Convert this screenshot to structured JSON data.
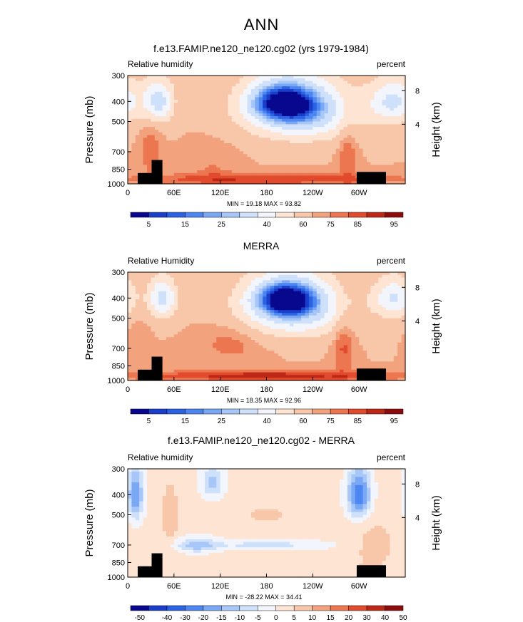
{
  "page_title": "ANN",
  "colors": {
    "levels": [
      "#08088e",
      "#1a3ec9",
      "#2a62e3",
      "#4d86f0",
      "#7ba8f5",
      "#a7c7f8",
      "#cfe0fa",
      "#f2f6fc",
      "#fde4d3",
      "#f8c6a9",
      "#f3a27e",
      "#ec7650",
      "#e14a2c",
      "#bd2715",
      "#8c0c0c"
    ],
    "terrain": "#000000"
  },
  "chart_data": [
    {
      "type": "heatmap",
      "title": "f.e13.FAMIP.ne120_ne120.cg02 (yrs 1979-1984)",
      "left_label": "Relative humidity",
      "right_label": "percent",
      "ylabel": "Pressure (mb)",
      "ylabel_right": "Height (km)",
      "xticks": [
        "0",
        "60E",
        "120E",
        "180",
        "120W",
        "60W"
      ],
      "yticks": [
        "300",
        "400",
        "500",
        "700",
        "850",
        "1000"
      ],
      "yticks_right": [
        "8",
        "4"
      ],
      "stats": "MIN =   19.18   MAX =   93.82",
      "colorbar_labels": [
        "5",
        "15",
        "25",
        "40",
        "60",
        "75",
        "85",
        "95"
      ],
      "x_range_deg": [
        0,
        360
      ],
      "y_range_mb": [
        300,
        1000
      ],
      "features": [
        {
          "lon": 180,
          "p": 850,
          "value": 70,
          "spread_lon": 200,
          "spread_p": 300
        },
        {
          "lon": 200,
          "p": 400,
          "value": 22,
          "spread_lon": 45,
          "spread_p": 90
        },
        {
          "lon": 225,
          "p": 450,
          "value": 28,
          "spread_lon": 70,
          "spread_p": 150
        },
        {
          "lon": 40,
          "p": 400,
          "value": 35,
          "spread_lon": 20,
          "spread_p": 100
        },
        {
          "lon": 345,
          "p": 400,
          "value": 38,
          "spread_lon": 30,
          "spread_p": 100
        },
        {
          "lon": 180,
          "p": 950,
          "value": 85,
          "spread_lon": 180,
          "spread_p": 60
        },
        {
          "lon": 285,
          "p": 700,
          "value": 80,
          "spread_lon": 12,
          "spread_p": 250
        },
        {
          "lon": 30,
          "p": 700,
          "value": 80,
          "spread_lon": 12,
          "spread_p": 200
        },
        {
          "lon": 110,
          "p": 800,
          "value": 75,
          "spread_lon": 30,
          "spread_p": 180
        }
      ]
    },
    {
      "type": "heatmap",
      "title": "MERRA",
      "left_label": "Relative Humidity",
      "right_label": "percent",
      "ylabel": "Pressure (mb)",
      "ylabel_right": "Height (km)",
      "xticks": [
        "0",
        "60E",
        "120E",
        "180",
        "120W",
        "60W"
      ],
      "yticks": [
        "300",
        "400",
        "500",
        "700",
        "850",
        "1000"
      ],
      "yticks_right": [
        "8",
        "4"
      ],
      "stats": "MIN =   18.35   MAX =   92.96",
      "colorbar_labels": [
        "5",
        "15",
        "25",
        "40",
        "60",
        "75",
        "85",
        "95"
      ],
      "x_range_deg": [
        0,
        360
      ],
      "y_range_mb": [
        300,
        1000
      ],
      "features": [
        {
          "lon": 180,
          "p": 850,
          "value": 70,
          "spread_lon": 200,
          "spread_p": 300
        },
        {
          "lon": 205,
          "p": 400,
          "value": 22,
          "spread_lon": 40,
          "spread_p": 80
        },
        {
          "lon": 215,
          "p": 450,
          "value": 30,
          "spread_lon": 70,
          "spread_p": 150
        },
        {
          "lon": 45,
          "p": 400,
          "value": 35,
          "spread_lon": 18,
          "spread_p": 90
        },
        {
          "lon": 345,
          "p": 400,
          "value": 40,
          "spread_lon": 25,
          "spread_p": 90
        },
        {
          "lon": 180,
          "p": 950,
          "value": 88,
          "spread_lon": 180,
          "spread_p": 55
        },
        {
          "lon": 280,
          "p": 650,
          "value": 82,
          "spread_lon": 14,
          "spread_p": 250
        },
        {
          "lon": 135,
          "p": 650,
          "value": 78,
          "spread_lon": 40,
          "spread_p": 150
        },
        {
          "lon": 15,
          "p": 650,
          "value": 75,
          "spread_lon": 12,
          "spread_p": 150
        }
      ]
    },
    {
      "type": "heatmap",
      "title": "f.e13.FAMIP.ne120_ne120.cg02 - MERRA",
      "left_label": "Relative humidity",
      "right_label": "percent",
      "ylabel": "Pressure (mb)",
      "ylabel_right": "Height (km)",
      "xticks": [
        "0",
        "60E",
        "120E",
        "180",
        "120W",
        "60W"
      ],
      "yticks": [
        "300",
        "400",
        "500",
        "700",
        "850",
        "1000"
      ],
      "yticks_right": [
        "8",
        "4"
      ],
      "stats": "MIN =  -28.22   MAX =   34.41",
      "colorbar_labels": [
        "-50",
        "-40",
        "-30",
        "-20",
        "-15",
        "-10",
        "-5",
        "0",
        "5",
        "10",
        "15",
        "20",
        "30",
        "40",
        "50"
      ],
      "x_range_deg": [
        0,
        360
      ],
      "y_range_mb": [
        300,
        1000
      ],
      "features": [
        {
          "lon": 180,
          "p": 600,
          "value": 2,
          "spread_lon": 200,
          "spread_p": 400
        },
        {
          "lon": 10,
          "p": 400,
          "value": -20,
          "spread_lon": 10,
          "spread_p": 120
        },
        {
          "lon": 300,
          "p": 400,
          "value": -25,
          "spread_lon": 15,
          "spread_p": 110
        },
        {
          "lon": 90,
          "p": 700,
          "value": -12,
          "spread_lon": 25,
          "spread_p": 60
        },
        {
          "lon": 180,
          "p": 700,
          "value": -7,
          "spread_lon": 80,
          "spread_p": 40
        },
        {
          "lon": 55,
          "p": 500,
          "value": 10,
          "spread_lon": 10,
          "spread_p": 150
        },
        {
          "lon": 110,
          "p": 350,
          "value": -12,
          "spread_lon": 15,
          "spread_p": 60
        },
        {
          "lon": 320,
          "p": 700,
          "value": 7,
          "spread_lon": 30,
          "spread_p": 200
        },
        {
          "lon": 180,
          "p": 500,
          "value": 6,
          "spread_lon": 40,
          "spread_p": 60
        },
        {
          "lon": 260,
          "p": 900,
          "value": 4,
          "spread_lon": 100,
          "spread_p": 60
        }
      ]
    }
  ]
}
